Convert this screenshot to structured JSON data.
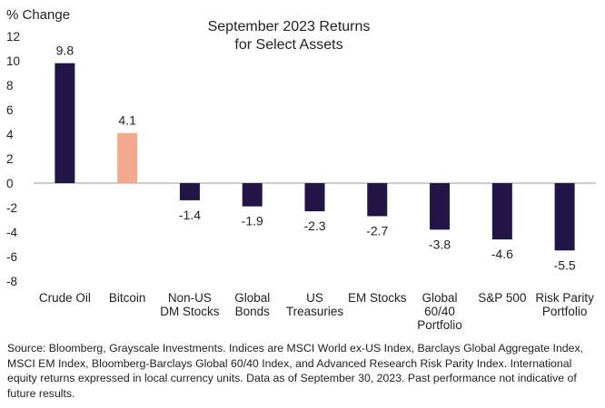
{
  "chart_data": {
    "type": "bar",
    "title_lines": [
      "September 2023 Returns",
      "for Select Assets"
    ],
    "ylabel": "% Change",
    "xlabel": "",
    "ylim": [
      -8,
      12
    ],
    "yticks": [
      12,
      10,
      8,
      6,
      4,
      2,
      0,
      -2,
      -4,
      -6,
      -8
    ],
    "grid": false,
    "legend": "none",
    "categories": [
      [
        "Crude Oil"
      ],
      [
        "Bitcoin"
      ],
      [
        "Non-US",
        "DM Stocks"
      ],
      [
        "Global",
        "Bonds"
      ],
      [
        "US",
        "Treasuries"
      ],
      [
        "EM Stocks"
      ],
      [
        "Global",
        "60/40",
        "Portfolio"
      ],
      [
        "S&P 500"
      ],
      [
        "Risk Parity",
        "Portfolio"
      ]
    ],
    "values": [
      9.8,
      4.1,
      -1.4,
      -1.9,
      -2.3,
      -2.7,
      -3.8,
      -4.6,
      -5.5
    ],
    "data_labels": [
      "9.8",
      "4.1",
      "-1.4",
      "-1.9",
      "-2.3",
      "-2.7",
      "-3.8",
      "-4.6",
      "-5.5"
    ],
    "colors": {
      "default_bar": "#231647",
      "highlight_bar": "#f4a98e",
      "axis": "#9a9a9a"
    },
    "highlight_index": 1
  },
  "source_text": "Source: Bloomberg, Grayscale Investments. Indices are MSCI World ex-US Index, Barclays Global Aggregate Index, MSCI EM Index, Bloomberg-Barclays Global 60/40 Index, and Advanced Research Risk Parity Index. International equity returns expressed in local currency units. Data as of September 30, 2023. Past performance not indicative of future results."
}
